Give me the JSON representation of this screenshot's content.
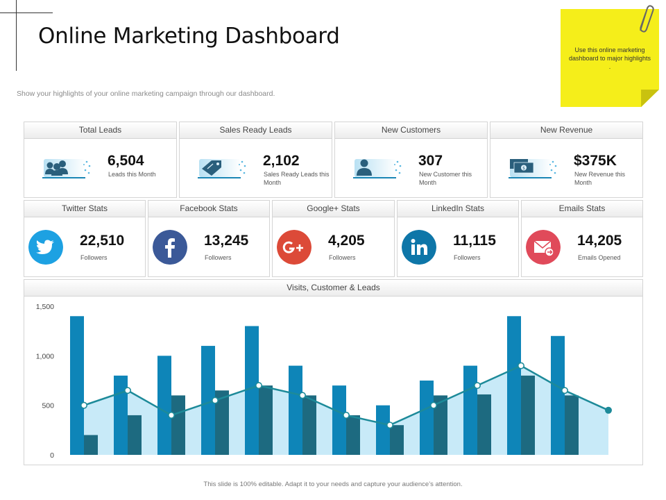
{
  "header": {
    "title": "Online Marketing Dashboard",
    "subtitle": "Show your highlights of your online marketing campaign through our dashboard."
  },
  "sticky_note": {
    "text": "Use this online marketing dashboard to major highlights ."
  },
  "kpis": [
    {
      "title": "Total Leads",
      "value": "6,504",
      "desc": "Leads this Month",
      "icon": "users-group-icon"
    },
    {
      "title": "Sales Ready Leads",
      "value": "2,102",
      "desc": "Sales Ready Leads this Month",
      "icon": "price-tag-icon"
    },
    {
      "title": "New Customers",
      "value": "307",
      "desc": "New Customer this Month",
      "icon": "user-icon"
    },
    {
      "title": "New Revenue",
      "value": "$375K",
      "desc": "New Revenue this Month",
      "icon": "money-icon"
    }
  ],
  "social": [
    {
      "title": "Twitter Stats",
      "value": "22,510",
      "desc": "Followers",
      "color": "#1da1e2",
      "icon": "twitter-icon"
    },
    {
      "title": "Facebook Stats",
      "value": "13,245",
      "desc": "Followers",
      "color": "#3b5998",
      "icon": "facebook-icon"
    },
    {
      "title": "Google+ Stats",
      "value": "4,205",
      "desc": "Followers",
      "color": "#dc4a38",
      "icon": "google-plus-icon"
    },
    {
      "title": "LinkedIn Stats",
      "value": "11,115",
      "desc": "Followers",
      "color": "#0e76a8",
      "icon": "linkedin-icon"
    },
    {
      "title": "Emails Stats",
      "value": "14,205",
      "desc": "Emails Opened",
      "color": "#e04a5a",
      "icon": "email-icon"
    }
  ],
  "chart_title": "Visits, Customer & Leads",
  "chart_data": {
    "type": "bar",
    "title": "Visits, Customer & Leads",
    "ylim": [
      0,
      1500
    ],
    "yticks": [
      0,
      500,
      1000,
      1500
    ],
    "ytick_labels": [
      "0",
      "500",
      "1,000",
      "1,500"
    ],
    "grid": false,
    "series": [
      {
        "type": "bar",
        "values": [
          1400,
          800,
          1000,
          1100,
          1300,
          900,
          700,
          500,
          750,
          900,
          1400,
          1200
        ],
        "color": "#0e85b8"
      },
      {
        "type": "bar",
        "values": [
          200,
          400,
          600,
          650,
          700,
          600,
          400,
          300,
          600,
          610,
          800,
          600
        ],
        "color": "#1d6a80"
      },
      {
        "type": "area-line",
        "values": [
          500,
          650,
          400,
          550,
          700,
          600,
          400,
          300,
          500,
          700,
          900,
          650,
          450
        ],
        "color": "#1d8a99",
        "fill": "#c8eaf8"
      }
    ]
  },
  "footer": "This slide is 100% editable. Adapt it to your needs and capture your audience’s attention."
}
